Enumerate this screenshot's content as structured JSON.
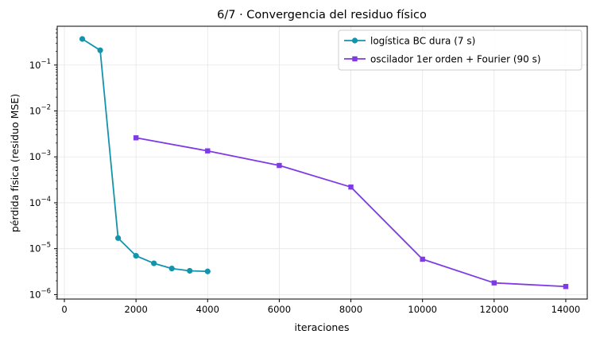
{
  "chart_data": {
    "type": "line",
    "title": "6/7 · Convergencia del residuo físico",
    "xlabel": "iteraciones",
    "ylabel": "pérdida física (residuo MSE)",
    "xlim": [
      -200,
      14600
    ],
    "ylim": [
      8e-07,
      0.7
    ],
    "yscale": "log",
    "grid": true,
    "legend_position": "top-right",
    "x_ticks": [
      {
        "value": 0,
        "label": "0"
      },
      {
        "value": 2000,
        "label": "2000"
      },
      {
        "value": 4000,
        "label": "4000"
      },
      {
        "value": 6000,
        "label": "6000"
      },
      {
        "value": 8000,
        "label": "8000"
      },
      {
        "value": 10000,
        "label": "10000"
      },
      {
        "value": 12000,
        "label": "12000"
      },
      {
        "value": 14000,
        "label": "14000"
      }
    ],
    "y_ticks": [
      {
        "exp": -6,
        "base": "10",
        "sup": "−6"
      },
      {
        "exp": -5,
        "base": "10",
        "sup": "−5"
      },
      {
        "exp": -4,
        "base": "10",
        "sup": "−4"
      },
      {
        "exp": -3,
        "base": "10",
        "sup": "−3"
      },
      {
        "exp": -2,
        "base": "10",
        "sup": "−2"
      },
      {
        "exp": -1,
        "base": "10",
        "sup": "−1"
      }
    ],
    "series": [
      {
        "name": "logística BC dura (7 s)",
        "color": "#1394ac",
        "marker": "circle",
        "x": [
          500,
          1000,
          1500,
          2000,
          2500,
          3000,
          3500,
          4000
        ],
        "y": [
          0.37,
          0.21,
          1.7e-05,
          7e-06,
          4.8e-06,
          3.7e-06,
          3.3e-06,
          3.2e-06
        ]
      },
      {
        "name": "oscilador 1er orden + Fourier (90 s)",
        "color": "#7e3ae6",
        "marker": "square",
        "x": [
          2000,
          4000,
          6000,
          8000,
          10000,
          12000,
          14000
        ],
        "y": [
          0.0026,
          0.00135,
          0.00065,
          0.00022,
          5.9e-06,
          1.8e-06,
          1.5e-06
        ]
      }
    ]
  }
}
